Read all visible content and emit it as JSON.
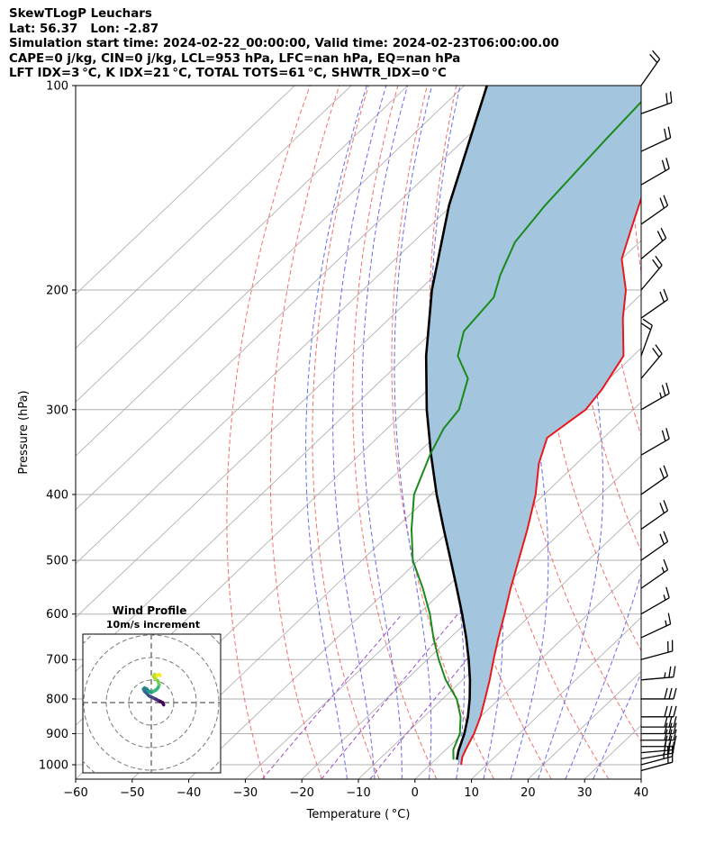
{
  "header": {
    "title": "SkewTLogP Leuchars",
    "location": "Lat: 56.37   Lon: -2.87",
    "times": "Simulation start time: 2024-02-22_00:00:00, Valid time: 2024-02-23T06:00:00.00",
    "cape_line": "CAPE=0 j/kg, CIN=0 j/kg, LCL=953 hPa, LFC=nan hPa, EQ=nan hPa",
    "index_line": "LFT IDX=3 °C, K IDX=21 °C, TOTAL TOTS=61 °C, SHWTR_IDX=0 °C"
  },
  "colors": {
    "temperature": "#e8191c",
    "dewpoint": "#1a8a1a",
    "parcel": "#000000",
    "cape_fill": "#a3c6de",
    "dry_adiabat": "#f07070",
    "moist_adiabat": "#6a6ae8",
    "mixing_ratio": "#9b4fc4",
    "isotherm": "#a9a9a9"
  },
  "chart_data": {
    "type": "line",
    "xlabel": "Temperature ( °C)",
    "ylabel": "Pressure (hPa)",
    "xlim": [
      -60,
      40
    ],
    "ylim_hpa": [
      1050,
      100
    ],
    "log_y": true,
    "skewed_x": true,
    "x_ticks": [
      -60,
      -50,
      -40,
      -30,
      -20,
      -10,
      0,
      10,
      20,
      30,
      40
    ],
    "x_tick_labels": [
      "−60",
      "−50",
      "−40",
      "−30",
      "−20",
      "−10",
      "0",
      "10",
      "20",
      "30",
      "40"
    ],
    "y_ticks": [
      1000,
      900,
      800,
      700,
      600,
      500,
      400,
      300,
      200,
      100
    ],
    "grid": true,
    "series": [
      {
        "name": "",
        "role": "temperature",
        "points": [
          [
            1000,
            5.5
          ],
          [
            975,
            4.3
          ],
          [
            950,
            3.5
          ],
          [
            900,
            2
          ],
          [
            850,
            0
          ],
          [
            800,
            -2.5
          ],
          [
            750,
            -5.2
          ],
          [
            700,
            -8.3
          ],
          [
            650,
            -11.5
          ],
          [
            600,
            -14.8
          ],
          [
            550,
            -18.5
          ],
          [
            500,
            -22.3
          ],
          [
            450,
            -26.5
          ],
          [
            400,
            -31.5
          ],
          [
            360,
            -36.7
          ],
          [
            330,
            -40
          ],
          [
            300,
            -38.4
          ],
          [
            280,
            -39.3
          ],
          [
            250,
            -41.7
          ],
          [
            220,
            -48.8
          ],
          [
            200,
            -53.5
          ],
          [
            180,
            -60
          ],
          [
            160,
            -64.5
          ],
          [
            140,
            -69.5
          ],
          [
            120,
            -74.5
          ],
          [
            110,
            -76.6
          ],
          [
            100,
            -79
          ]
        ]
      },
      {
        "name": "",
        "role": "dewpoint",
        "points": [
          [
            983,
            3.2
          ],
          [
            950,
            1.3
          ],
          [
            900,
            -0.5
          ],
          [
            850,
            -3.5
          ],
          [
            800,
            -7.5
          ],
          [
            750,
            -13
          ],
          [
            700,
            -18
          ],
          [
            650,
            -23
          ],
          [
            600,
            -28
          ],
          [
            550,
            -34
          ],
          [
            500,
            -41
          ],
          [
            450,
            -47
          ],
          [
            400,
            -53
          ],
          [
            350,
            -57.5
          ],
          [
            320,
            -60
          ],
          [
            300,
            -60.8
          ],
          [
            270,
            -65
          ],
          [
            250,
            -71
          ],
          [
            230,
            -74.5
          ],
          [
            205,
            -75.5
          ],
          [
            190,
            -78.5
          ],
          [
            170,
            -82
          ],
          [
            150,
            -83.5
          ],
          [
            120,
            -85
          ],
          [
            100,
            -86
          ]
        ]
      },
      {
        "name": "",
        "role": "parcel",
        "points": [
          [
            983,
            3.8
          ],
          [
            953,
            2.4
          ],
          [
            900,
            0.3
          ],
          [
            850,
            -2.2
          ],
          [
            800,
            -5.2
          ],
          [
            750,
            -8.7
          ],
          [
            700,
            -12.7
          ],
          [
            650,
            -17.2
          ],
          [
            600,
            -22.3
          ],
          [
            550,
            -28
          ],
          [
            500,
            -34.3
          ],
          [
            450,
            -41.3
          ],
          [
            400,
            -49
          ],
          [
            350,
            -57.3
          ],
          [
            300,
            -66.5
          ],
          [
            250,
            -76.6
          ],
          [
            200,
            -87.8
          ],
          [
            150,
            -100.5
          ],
          [
            100,
            -116
          ]
        ]
      }
    ],
    "wind_barbs": {
      "pressures": [
        1020,
        1000,
        980,
        960,
        940,
        920,
        900,
        880,
        850,
        800,
        750,
        700,
        650,
        600,
        550,
        500,
        450,
        400,
        350,
        300,
        270,
        250,
        220,
        200,
        180,
        160,
        140,
        125,
        110,
        100
      ],
      "direction_deg": [
        255,
        255,
        260,
        265,
        270,
        270,
        270,
        270,
        270,
        270,
        265,
        255,
        245,
        240,
        235,
        235,
        235,
        235,
        240,
        240,
        220,
        200,
        235,
        220,
        230,
        235,
        240,
        245,
        250,
        215
      ],
      "speed_kt": [
        20,
        25,
        25,
        30,
        30,
        30,
        30,
        30,
        30,
        30,
        25,
        20,
        15,
        15,
        15,
        20,
        20,
        20,
        20,
        25,
        20,
        20,
        20,
        20,
        20,
        20,
        20,
        20,
        20,
        20
      ]
    },
    "hodograph": {
      "title": "Wind Profile",
      "subtitle": "10m/s increment",
      "ring_spacing_ms": 10,
      "u_ms": [
        5.5,
        5,
        4,
        3,
        2,
        1,
        0,
        -1,
        -2,
        -3,
        -3.5,
        -3,
        -2,
        -1,
        0,
        1,
        2,
        3,
        3.5,
        3,
        2,
        1,
        1.5,
        2.5,
        3.5,
        4
      ],
      "v_ms": [
        -1,
        0,
        0.5,
        1,
        1.5,
        2,
        2.5,
        3,
        4,
        5,
        6,
        6.5,
        6,
        5,
        4.5,
        5,
        5.5,
        6.5,
        8,
        9.5,
        10.5,
        11.5,
        12.5,
        12,
        12.5,
        12
      ]
    }
  }
}
